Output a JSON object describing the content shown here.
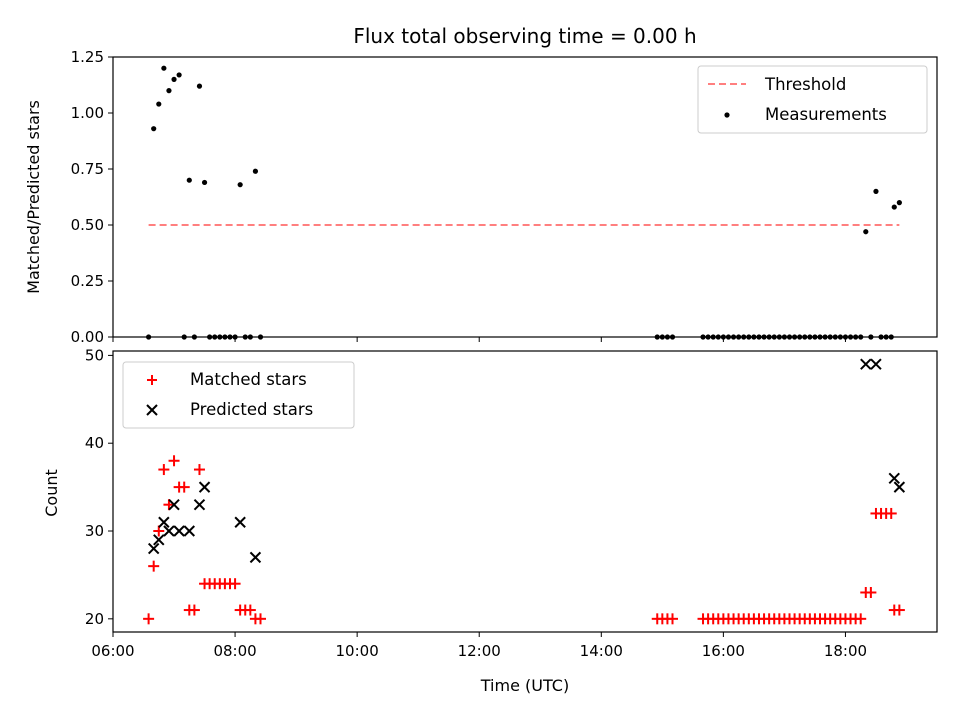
{
  "chart_data": [
    {
      "type": "scatter",
      "panel": "top",
      "title": "Flux total observing time = 0.00 h",
      "ylabel": "Matched/Predicted stars",
      "xlabel": "",
      "xlim": [
        "06:00",
        "19:30"
      ],
      "ylim": [
        0,
        1.25
      ],
      "yticks": [
        "0.00",
        "0.25",
        "0.50",
        "0.75",
        "1.00",
        "1.25"
      ],
      "legend_position": "top-right",
      "threshold": {
        "name": "Threshold",
        "y": 0.5,
        "x_start": "06:35",
        "x_end": "18:53",
        "color": "#ff7f7f",
        "style": "dashed"
      },
      "series": [
        {
          "name": "Measurements",
          "marker": "dot",
          "color": "#000000",
          "points": [
            [
              "06:35",
              0.0
            ],
            [
              "06:40",
              0.93
            ],
            [
              "06:45",
              1.04
            ],
            [
              "06:50",
              1.2
            ],
            [
              "06:55",
              1.1
            ],
            [
              "07:00",
              1.15
            ],
            [
              "07:05",
              1.17
            ],
            [
              "07:10",
              0.0
            ],
            [
              "07:15",
              0.7
            ],
            [
              "07:20",
              0.0
            ],
            [
              "07:25",
              1.12
            ],
            [
              "07:30",
              0.69
            ],
            [
              "07:35",
              0.0
            ],
            [
              "07:40",
              0.0
            ],
            [
              "07:45",
              0.0
            ],
            [
              "07:50",
              0.0
            ],
            [
              "07:55",
              0.0
            ],
            [
              "08:00",
              0.0
            ],
            [
              "08:05",
              0.68
            ],
            [
              "08:10",
              0.0
            ],
            [
              "08:15",
              0.0
            ],
            [
              "08:20",
              0.74
            ],
            [
              "08:25",
              0.0
            ],
            [
              "14:55",
              0.0
            ],
            [
              "15:00",
              0.0
            ],
            [
              "15:05",
              0.0
            ],
            [
              "15:10",
              0.0
            ],
            [
              "15:40",
              0.0
            ],
            [
              "15:45",
              0.0
            ],
            [
              "15:50",
              0.0
            ],
            [
              "15:55",
              0.0
            ],
            [
              "16:00",
              0.0
            ],
            [
              "16:05",
              0.0
            ],
            [
              "16:10",
              0.0
            ],
            [
              "16:15",
              0.0
            ],
            [
              "16:20",
              0.0
            ],
            [
              "16:25",
              0.0
            ],
            [
              "16:30",
              0.0
            ],
            [
              "16:35",
              0.0
            ],
            [
              "16:40",
              0.0
            ],
            [
              "16:45",
              0.0
            ],
            [
              "16:50",
              0.0
            ],
            [
              "16:55",
              0.0
            ],
            [
              "17:00",
              0.0
            ],
            [
              "17:05",
              0.0
            ],
            [
              "17:10",
              0.0
            ],
            [
              "17:15",
              0.0
            ],
            [
              "17:20",
              0.0
            ],
            [
              "17:25",
              0.0
            ],
            [
              "17:30",
              0.0
            ],
            [
              "17:35",
              0.0
            ],
            [
              "17:40",
              0.0
            ],
            [
              "17:45",
              0.0
            ],
            [
              "17:50",
              0.0
            ],
            [
              "17:55",
              0.0
            ],
            [
              "18:00",
              0.0
            ],
            [
              "18:05",
              0.0
            ],
            [
              "18:10",
              0.0
            ],
            [
              "18:15",
              0.0
            ],
            [
              "18:20",
              0.47
            ],
            [
              "18:25",
              0.0
            ],
            [
              "18:30",
              0.65
            ],
            [
              "18:35",
              0.0
            ],
            [
              "18:40",
              0.0
            ],
            [
              "18:45",
              0.0
            ],
            [
              "18:48",
              0.58
            ],
            [
              "18:53",
              0.6
            ]
          ]
        }
      ]
    },
    {
      "type": "scatter",
      "panel": "bottom",
      "title": "",
      "xlabel": "Time (UTC)",
      "ylabel": "Count",
      "xlim": [
        "06:00",
        "19:30"
      ],
      "ylim": [
        18.5,
        50.5
      ],
      "xticks": [
        "06:00",
        "08:00",
        "10:00",
        "12:00",
        "14:00",
        "16:00",
        "18:00"
      ],
      "yticks": [
        "20",
        "30",
        "40",
        "50"
      ],
      "legend_position": "top-left",
      "series": [
        {
          "name": "Matched stars",
          "marker": "plus",
          "color": "#ff0000",
          "points": [
            [
              "06:35",
              20
            ],
            [
              "06:40",
              26
            ],
            [
              "06:45",
              30
            ],
            [
              "06:50",
              37
            ],
            [
              "06:55",
              33
            ],
            [
              "07:00",
              38
            ],
            [
              "07:05",
              35
            ],
            [
              "07:10",
              35
            ],
            [
              "07:15",
              21
            ],
            [
              "07:20",
              21
            ],
            [
              "07:25",
              37
            ],
            [
              "07:30",
              24
            ],
            [
              "07:35",
              24
            ],
            [
              "07:40",
              24
            ],
            [
              "07:45",
              24
            ],
            [
              "07:50",
              24
            ],
            [
              "07:55",
              24
            ],
            [
              "08:00",
              24
            ],
            [
              "08:05",
              21
            ],
            [
              "08:10",
              21
            ],
            [
              "08:15",
              21
            ],
            [
              "08:20",
              20
            ],
            [
              "08:25",
              20
            ],
            [
              "14:55",
              20
            ],
            [
              "15:00",
              20
            ],
            [
              "15:05",
              20
            ],
            [
              "15:10",
              20
            ],
            [
              "15:40",
              20
            ],
            [
              "15:45",
              20
            ],
            [
              "15:50",
              20
            ],
            [
              "15:55",
              20
            ],
            [
              "16:00",
              20
            ],
            [
              "16:05",
              20
            ],
            [
              "16:10",
              20
            ],
            [
              "16:15",
              20
            ],
            [
              "16:20",
              20
            ],
            [
              "16:25",
              20
            ],
            [
              "16:30",
              20
            ],
            [
              "16:35",
              20
            ],
            [
              "16:40",
              20
            ],
            [
              "16:45",
              20
            ],
            [
              "16:50",
              20
            ],
            [
              "16:55",
              20
            ],
            [
              "17:00",
              20
            ],
            [
              "17:05",
              20
            ],
            [
              "17:10",
              20
            ],
            [
              "17:15",
              20
            ],
            [
              "17:20",
              20
            ],
            [
              "17:25",
              20
            ],
            [
              "17:30",
              20
            ],
            [
              "17:35",
              20
            ],
            [
              "17:40",
              20
            ],
            [
              "17:45",
              20
            ],
            [
              "17:50",
              20
            ],
            [
              "17:55",
              20
            ],
            [
              "18:00",
              20
            ],
            [
              "18:05",
              20
            ],
            [
              "18:10",
              20
            ],
            [
              "18:15",
              20
            ],
            [
              "18:20",
              23
            ],
            [
              "18:25",
              23
            ],
            [
              "18:30",
              32
            ],
            [
              "18:35",
              32
            ],
            [
              "18:40",
              32
            ],
            [
              "18:45",
              32
            ],
            [
              "18:48",
              21
            ],
            [
              "18:53",
              21
            ]
          ]
        },
        {
          "name": "Predicted stars",
          "marker": "x",
          "color": "#000000",
          "points": [
            [
              "06:40",
              28
            ],
            [
              "06:45",
              29
            ],
            [
              "06:50",
              31
            ],
            [
              "06:55",
              30
            ],
            [
              "07:00",
              33
            ],
            [
              "07:05",
              30
            ],
            [
              "07:15",
              30
            ],
            [
              "07:25",
              33
            ],
            [
              "07:30",
              35
            ],
            [
              "08:05",
              31
            ],
            [
              "08:20",
              27
            ],
            [
              "18:20",
              49
            ],
            [
              "18:30",
              49
            ],
            [
              "18:48",
              36
            ],
            [
              "18:53",
              35
            ]
          ]
        }
      ]
    }
  ]
}
